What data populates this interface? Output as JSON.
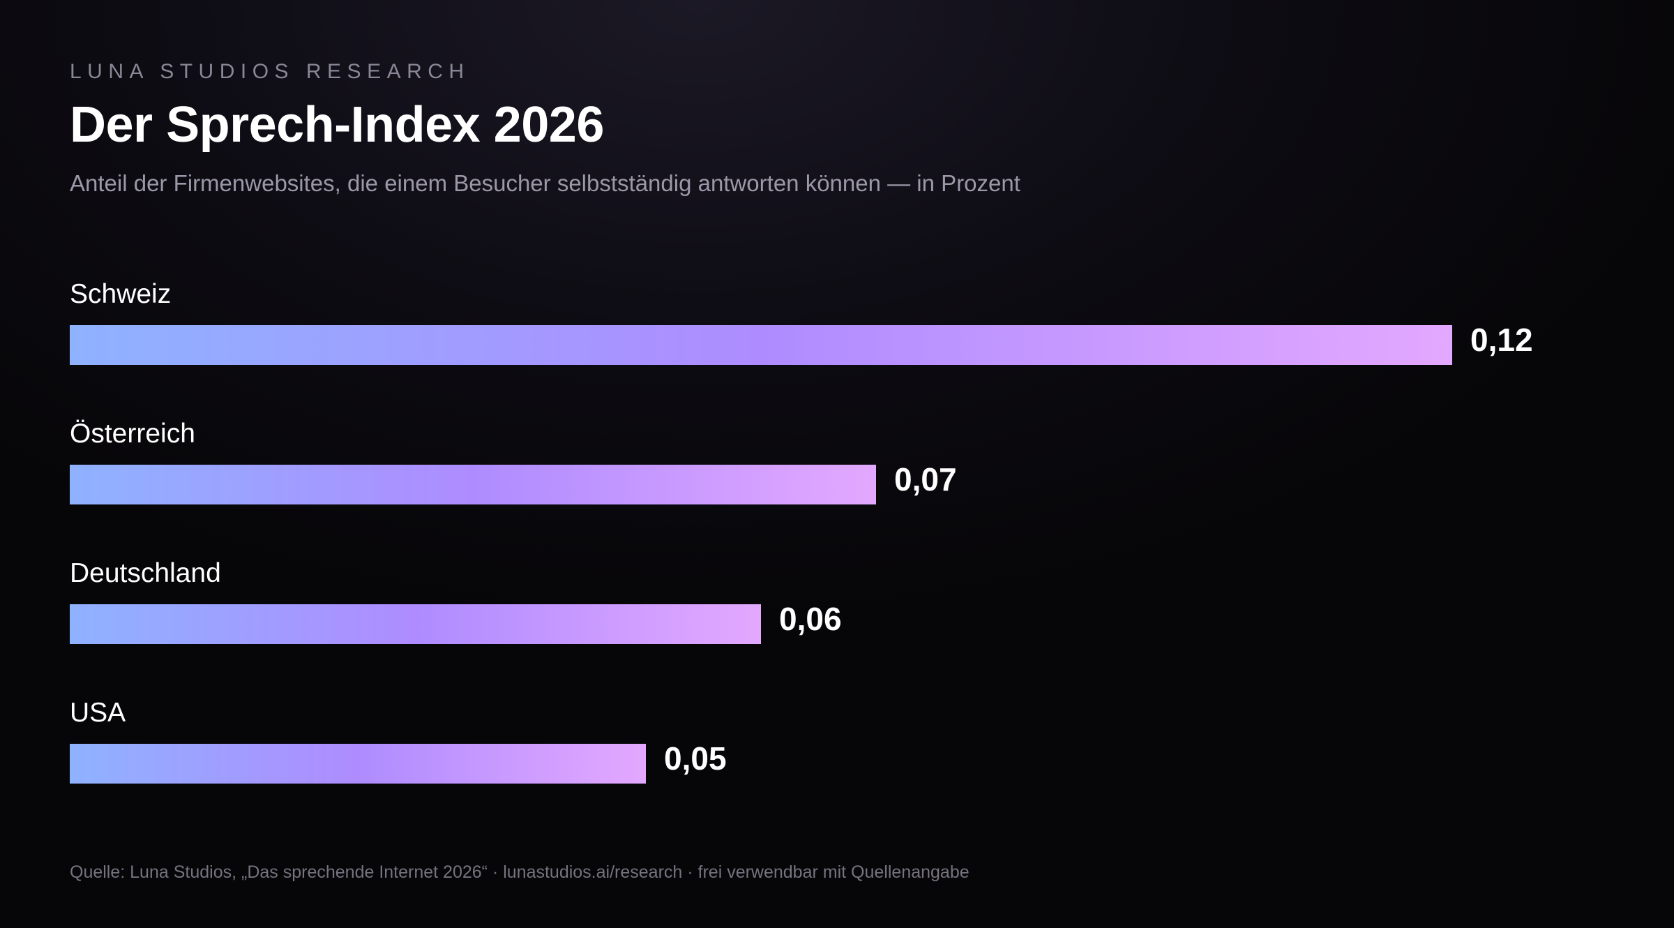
{
  "header": {
    "eyebrow": "LUNA STUDIOS RESEARCH",
    "title": "Der Sprech-Index 2026",
    "subtitle": "Anteil der Firmenwebsites, die einem Besucher selbstständig antworten können — in Prozent"
  },
  "chart_data": {
    "type": "bar",
    "orientation": "horizontal",
    "title": "Der Sprech-Index 2026",
    "subtitle": "Anteil der Firmenwebsites, die einem Besucher selbstständig antworten können — in Prozent",
    "categories": [
      "Schweiz",
      "Österreich",
      "Deutschland",
      "USA"
    ],
    "values": [
      0.12,
      0.07,
      0.06,
      0.05
    ],
    "value_labels": [
      "0,12",
      "0,07",
      "0,06",
      "0,05"
    ],
    "xlim": [
      0,
      0.12
    ],
    "grid": false,
    "legend": "none",
    "colors": {
      "bar_gradient_start": "#8fb2ff",
      "bar_gradient_mid": "#ae8cff",
      "bar_gradient_end": "#e3a8ff"
    }
  },
  "footer": {
    "source": "Quelle: Luna Studios, „Das sprechende Internet 2026“ · lunastudios.ai/research · frei verwendbar mit Quellenangabe"
  }
}
